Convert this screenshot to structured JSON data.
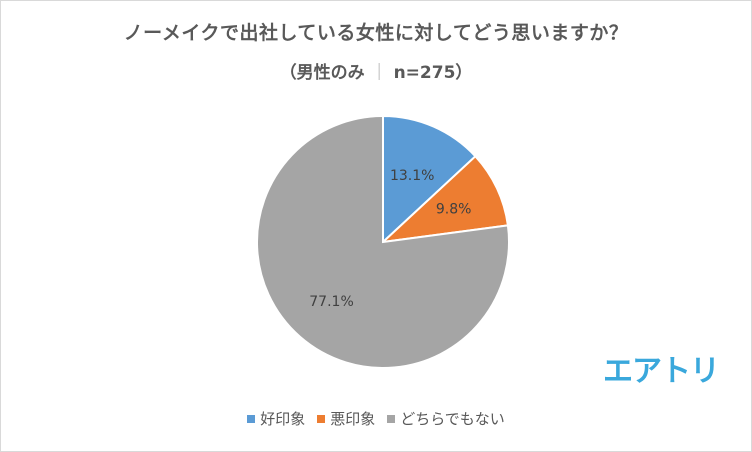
{
  "title": "ノーメイクで出社している女性に対してどう思いますか？",
  "subtitle": {
    "group": "（男性のみ",
    "separator": "｜",
    "count": "n=275）"
  },
  "logo": "エアトリ",
  "chart_data": {
    "type": "pie",
    "categories": [
      "好印象",
      "悪印象",
      "どちらでもない"
    ],
    "values": [
      13.1,
      9.8,
      77.1
    ],
    "labels": [
      "13.1%",
      "9.8%",
      "77.1%"
    ],
    "colors": [
      "#5b9bd5",
      "#ed7d31",
      "#a5a5a5"
    ],
    "legend_position": "bottom"
  }
}
